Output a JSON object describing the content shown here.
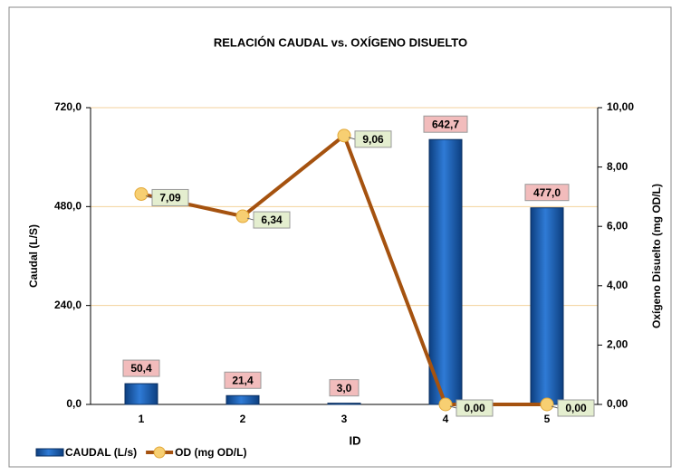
{
  "chart_data": {
    "type": "bar",
    "title": "RELACIÓN CAUDAL vs. OXÍGENO DISUELTO",
    "x_label": "ID",
    "y_label": "Caudal (L/S)",
    "y2_label": "Oxígeno Disuelto (mg OD/L)",
    "categories": [
      "1",
      "2",
      "3",
      "4",
      "5"
    ],
    "series": [
      {
        "name": "CAUDAL (L/s)",
        "type": "bar",
        "color": "#1f63b8",
        "values": [
          50.4,
          21.4,
          3.0,
          642.7,
          477.0
        ],
        "value_labels": [
          "50,4",
          "21,4",
          "3,0",
          "642,7",
          "477,0"
        ]
      },
      {
        "name": "OD (mg OD/L)",
        "type": "line",
        "axis": "y2",
        "color": "#a5520f",
        "values": [
          7.09,
          6.34,
          9.06,
          0.0,
          0.0
        ],
        "value_labels": [
          "7,09",
          "6,34",
          "9,06",
          "0,00",
          "0,00"
        ]
      }
    ],
    "ylim": [
      0,
      720
    ],
    "yticks": [
      {
        "value": 0,
        "label": "0,0"
      },
      {
        "value": 240,
        "label": "240,0"
      },
      {
        "value": 480,
        "label": "480,0"
      },
      {
        "value": 720,
        "label": "720,0"
      }
    ],
    "y2lim": [
      0,
      10
    ],
    "y2ticks": [
      {
        "value": 0,
        "label": "0,00"
      },
      {
        "value": 2,
        "label": "2,00"
      },
      {
        "value": 4,
        "label": "4,00"
      },
      {
        "value": 6,
        "label": "6,00"
      },
      {
        "value": 8,
        "label": "8,00"
      },
      {
        "value": 10,
        "label": "10,00"
      }
    ],
    "grid": true,
    "legend": "bottom-left"
  }
}
